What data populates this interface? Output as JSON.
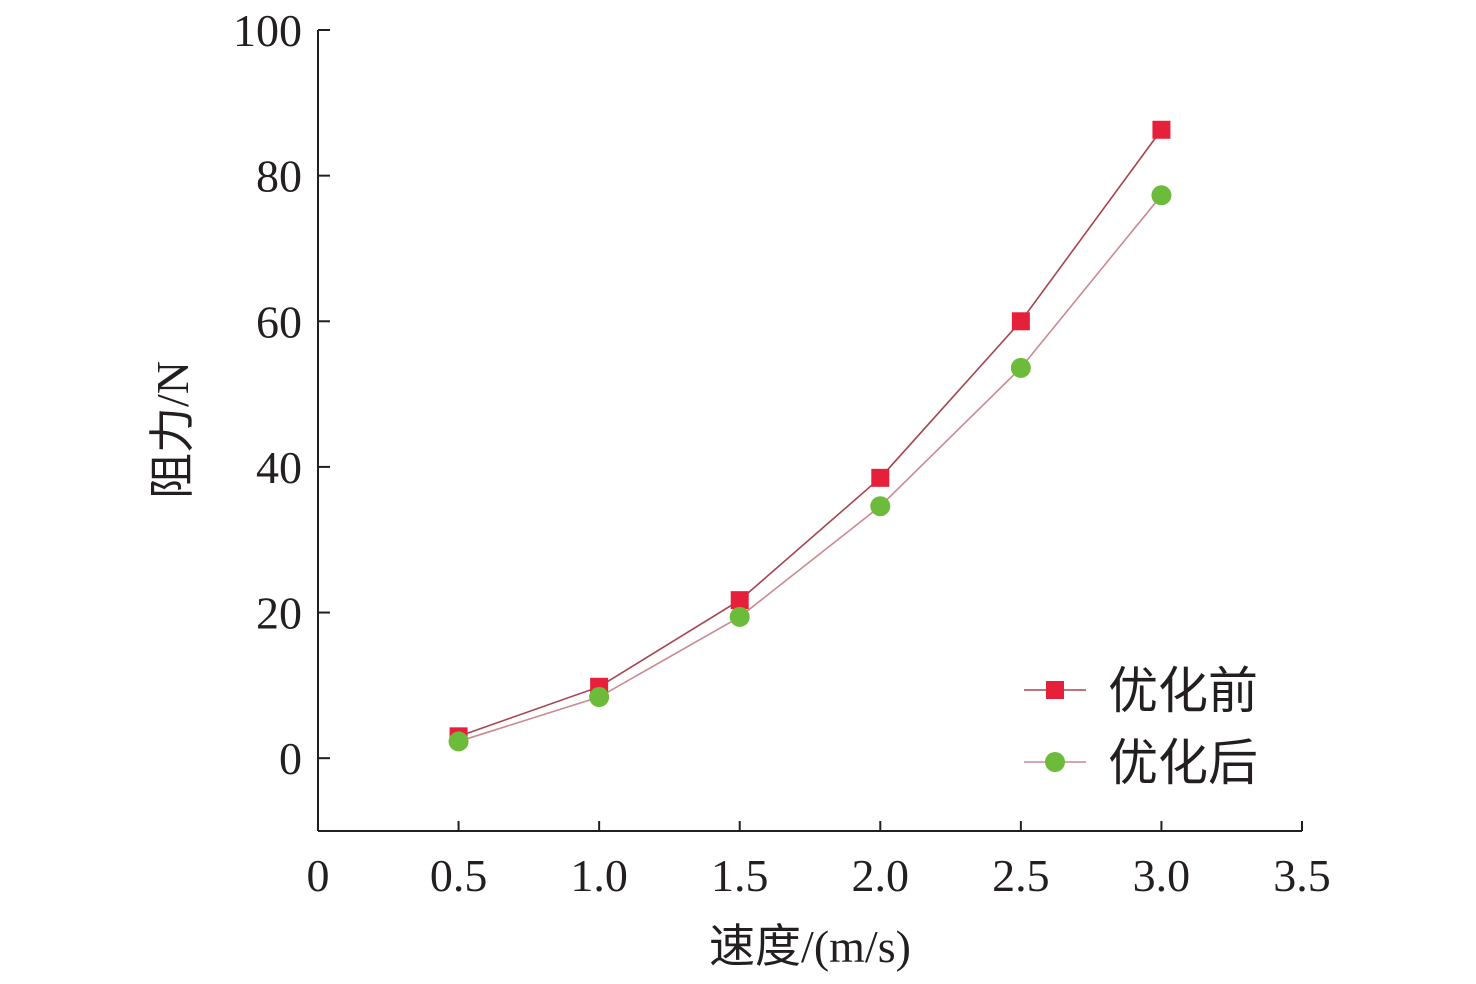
{
  "chart_data": {
    "type": "line",
    "title": "",
    "xlabel": "速度/(m/s)",
    "ylabel": "阻力/N",
    "xlim": [
      0,
      3.5
    ],
    "ylim": [
      -10,
      100
    ],
    "x_ticks": [
      "0",
      "0.5",
      "1.0",
      "1.5",
      "2.0",
      "2.5",
      "3.0",
      "3.5"
    ],
    "y_ticks": [
      "0",
      "20",
      "40",
      "60",
      "80",
      "100"
    ],
    "x": [
      0.5,
      1.0,
      1.5,
      2.0,
      2.5,
      3.0
    ],
    "series": [
      {
        "name": "优化前",
        "marker": "square",
        "color": "#e6203a",
        "line_color": "#a8434f",
        "values": [
          3.0,
          9.8,
          21.7,
          38.5,
          60.0,
          86.3
        ]
      },
      {
        "name": "优化后",
        "marker": "circle",
        "color": "#6dbb3a",
        "line_color": "#c98a90",
        "values": [
          2.3,
          8.4,
          19.4,
          34.6,
          53.6,
          77.3
        ]
      }
    ],
    "grid": false,
    "legend_position": "bottom-right"
  }
}
